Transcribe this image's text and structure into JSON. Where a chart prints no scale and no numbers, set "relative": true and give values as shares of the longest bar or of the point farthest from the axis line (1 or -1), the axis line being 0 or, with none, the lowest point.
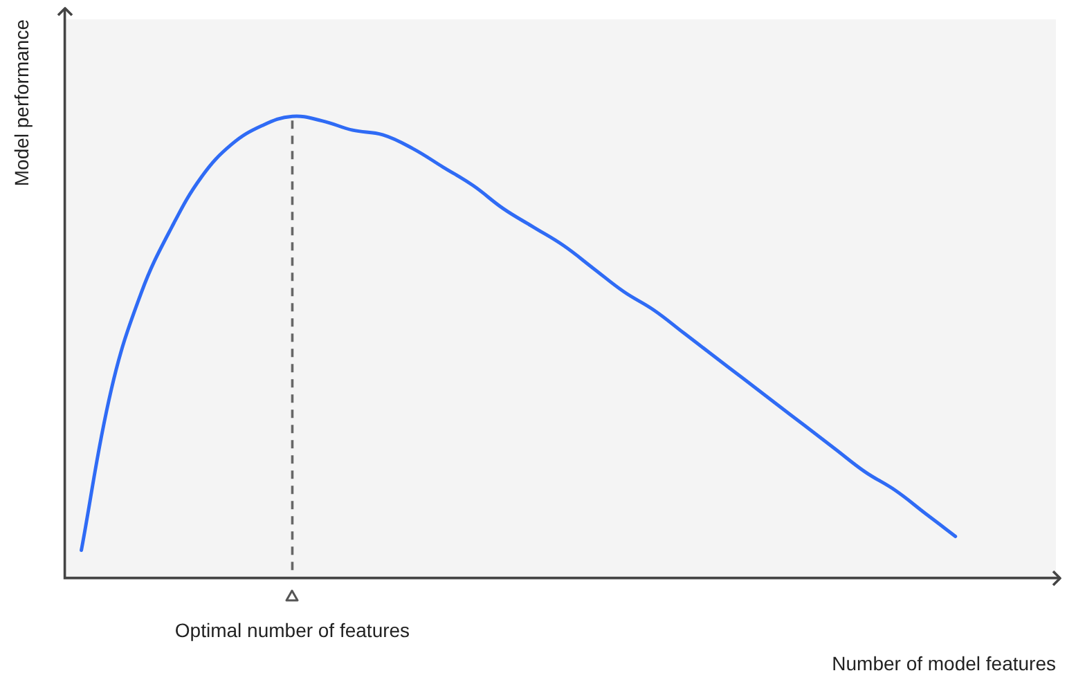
{
  "chart_data": {
    "type": "line",
    "relative": true,
    "xlabel": "Number of model features",
    "ylabel": "Model performance",
    "categories": [
      null,
      null,
      null,
      null,
      null,
      null,
      null,
      null,
      null,
      null,
      null,
      null,
      null,
      null,
      null,
      null,
      null,
      null,
      null,
      null,
      null,
      null,
      null,
      null,
      null,
      null,
      null,
      null,
      null,
      null
    ],
    "series": [
      {
        "color": "#2f6bf5",
        "values": [
          0.06,
          0.41,
          0.62,
          0.76,
          0.87,
          0.94,
          0.98,
          1,
          0.99,
          0.97,
          0.96,
          0.93,
          0.89,
          0.85,
          0.8,
          0.76,
          0.72,
          0.67,
          0.62,
          0.58,
          0.53,
          0.48,
          0.43,
          0.38,
          0.33,
          0.28,
          0.23,
          0.19,
          0.14,
          0.09
        ]
      }
    ],
    "annotations": [
      "Optimal number of features"
    ],
    "grid": false,
    "legend": false,
    "marker": "none",
    "line_style": "solid"
  }
}
